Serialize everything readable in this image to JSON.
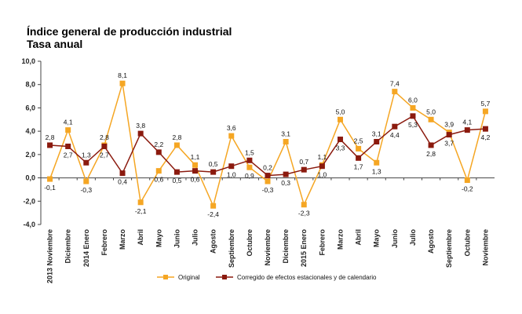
{
  "chart_data": {
    "type": "line",
    "title": "Índice general de producción industrial",
    "subtitle": "Tasa anual",
    "categories": [
      "2013 Noviembre",
      "Diciembre",
      "2014 Enero",
      "Febrero",
      "Marzo",
      "Abril",
      "Mayo",
      "Junio",
      "Julio",
      "Agosto",
      "Septiembre",
      "Octubre",
      "Noviembre",
      "Diciembre",
      "2015 Enero",
      "Febrero",
      "Marzo",
      "Abril",
      "Mayo",
      "Junio",
      "Julio",
      "Agosto",
      "Septiembre",
      "Octubre",
      "Noviembre"
    ],
    "series": [
      {
        "name": "Original",
        "color": "#f5a623",
        "marker": "square",
        "values": [
          -0.1,
          4.1,
          -0.3,
          2.8,
          8.1,
          -2.1,
          0.6,
          2.8,
          1.1,
          -2.4,
          3.6,
          0.9,
          -0.3,
          3.1,
          -2.3,
          1.1,
          5.0,
          2.5,
          1.3,
          7.4,
          6.0,
          5.0,
          3.9,
          -0.2,
          5.7
        ],
        "labels": [
          "-0,1",
          "4,1",
          "-0,3",
          "2,8",
          "8,1",
          "-2,1",
          "0,6",
          "2,8",
          "1,1",
          "-2,4",
          "3,6",
          "0,9",
          "-0,3",
          "3,1",
          "-2,3",
          "1,1",
          "5,0",
          "2,5",
          "1,3",
          "7,4",
          "6,0",
          "5,0",
          "3,9",
          "-0,2",
          "5,7"
        ]
      },
      {
        "name": "Corregido de efectos estacionales y de calendario",
        "color": "#8b1a0e",
        "marker": "square",
        "values": [
          2.8,
          2.7,
          1.3,
          2.7,
          0.4,
          3.8,
          2.2,
          0.5,
          0.6,
          0.5,
          1.0,
          1.5,
          0.2,
          0.3,
          0.7,
          1.0,
          3.3,
          1.7,
          3.1,
          4.4,
          5.3,
          2.8,
          3.7,
          4.1,
          4.2
        ],
        "labels": [
          "2,8",
          "2,7",
          "1,3",
          "2,7",
          "0,4",
          "3,8",
          "2,2",
          "0,5",
          "0,6",
          "0,5",
          "1,0",
          "1,5",
          "0,2",
          "0,3",
          "0,7",
          "1,0",
          "3,3",
          "1,7",
          "3,1",
          "4,4",
          "5,3",
          "2,8",
          "3,7",
          "4,1",
          "4,2"
        ]
      }
    ],
    "ylim": [
      -4,
      10
    ],
    "yticks": [
      "-4,0",
      "-2,0",
      "0,0",
      "2,0",
      "4,0",
      "6,0",
      "8,0",
      "10,0"
    ],
    "grid": false,
    "legend": "bottom"
  }
}
